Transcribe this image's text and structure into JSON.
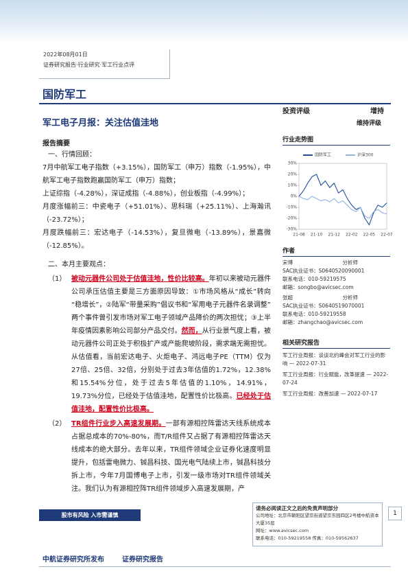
{
  "header": {
    "date": "2022年08月01日",
    "category": "证券研究报告·行业研究·军工行业点评",
    "sector": "国防军工"
  },
  "report": {
    "title": "军工电子月报：关注估值洼地",
    "rating_label": "投资评级",
    "rating": "增持",
    "rating_change": "维持评级"
  },
  "summary": {
    "heading": "报告摘要",
    "review": {
      "heading": "一、行情回顾：",
      "paragraphs": [
        "7月中航军工电子指数（+3.15%），国防军工（申万）指数（-1.95%），中航军工电子指数跑赢国防军工（申万）指数；",
        "上证综指（-4.28%），深证成指（-4.88%），创业板指（-4.99%）；",
        "月度涨幅前三：中瓷电子（+51.01%）、思科瑞（+25.11%）、上海瀚讯（-23.72%）；",
        "月度跌幅前三：宏达电子（-14.53%），复旦微电（-13.89%），景嘉微（-12.85%）。"
      ]
    },
    "views": {
      "heading": "二、本月主要观点：",
      "points": [
        {
          "number": "（1）",
          "parts": [
            {
              "text": "被动元器件公司处于估值洼地，性价比较高。",
              "emphasis": true
            },
            {
              "text": "年初以来被动元器件公司承压估值主要是三方面原因导致：①市场风格从“成长”转向“稳增长”，②陆军“带量采购”倡议书和“军用电子元器件名录调整”两个事件曾引发市场对军工电子领域产品降价的两次担忧；③上半年疫情因素影响公司部分产品交付。",
              "emphasis": false
            },
            {
              "text": "然而，",
              "emphasis": true
            },
            {
              "text": "从行业景气度上看，被动元器件公司正处于积极扩产或产能爬坡阶段，需求端无需担忧。从估值看，当前宏达电子、火炬电子、鸿远电子PE（TTM）仅为27倍、25倍、32倍，分别处于过去3年估值的1.72%，12.38%和15.54%分位，处于过去5年估值的1.10%，14.91%，19.73%分位，已经处于估值洼地，配置性价比极高。",
              "emphasis": false
            },
            {
              "text": "已经处于估值洼地，配置性价比极高。",
              "emphasis": true
            }
          ]
        },
        {
          "number": "（2）",
          "parts": [
            {
              "text": "TR组件行业步入高速发展期。",
              "emphasis": true
            },
            {
              "text": "一部有源相控阵雷达天线系统成本占据总成本的70%-80%，而T/R组件又占据了有源相控阵雷达天线成本的绝大部分。去年以来，TR组件领域企业证券化速度明显提升，包括雷电微力、铖昌科技、国光电气陆续上市，铖昌科技分拆上市，今年7月国博电子上市，引发一级市场对TR组件领域关注。我们认为有源相控阵TR组件领域步入高速发展期，产",
              "emphasis": false
            }
          ]
        }
      ]
    }
  },
  "sidebar": {
    "trend_chart": {
      "type": "line",
      "title": "行业走势图",
      "categories": [
        "21-08",
        null,
        null,
        null,
        "21-10",
        null,
        null,
        null,
        "21-12",
        null,
        null,
        null,
        "22-02",
        null,
        null,
        null,
        "22-05",
        null,
        null,
        null,
        "22-07"
      ],
      "series": [
        {
          "name": "国防军工",
          "color": "#1f4e9c",
          "values": [
            0,
            5,
            12,
            18,
            20,
            10,
            14,
            8,
            12,
            3,
            6,
            -2,
            -8,
            -12,
            -10,
            -20,
            -26,
            -15,
            -8,
            -10,
            -6
          ]
        },
        {
          "name": "沪深300",
          "color": "#8fb4e3",
          "values": [
            0,
            -2,
            -3,
            0,
            -2,
            -4,
            -3,
            -5,
            -2,
            -6,
            -4,
            -8,
            -12,
            -14,
            -10,
            -18,
            -20,
            -14,
            -12,
            -15,
            -16
          ]
        }
      ],
      "ylim": [
        -30,
        30
      ],
      "yticks": [
        {
          "value": 30,
          "label": "30%"
        },
        {
          "value": 20,
          "label": "20%"
        },
        {
          "value": 10,
          "label": "10%"
        },
        {
          "value": 0,
          "label": "0%"
        },
        {
          "value": -10,
          "label": "-10%"
        },
        {
          "value": -20,
          "label": "-20%"
        },
        {
          "value": -30,
          "label": "-30%"
        }
      ]
    },
    "authors": {
      "heading": "作者",
      "people": [
        {
          "name": "宋博",
          "role": "分析师",
          "cert": "SAC执业证书：S0640520090001",
          "phone": "联系电话：010-59219575",
          "email": "邮箱：songbo@avicsec.com"
        },
        {
          "name": "张超",
          "role": "分析师",
          "cert": "SAC执业证书：S0640519070001",
          "phone": "联系电话：010-59219558",
          "email": "邮箱：zhangchao@avicsec.com"
        }
      ]
    },
    "related": {
      "heading": "相关研究报告",
      "items": [
        "军工行业周报：谈谈北约峰会对军工行业的影响 — 2022-07-31",
        "军工行业周报：行业赋能，改革提速 — 2022-07-24",
        "军工行业周报：改善加速 — 2022-07-17"
      ]
    }
  },
  "footer": {
    "risk_notice": "股市有风险 入市需谨慎",
    "disclaimer": "请务必阅读正文之后的免责声明部分",
    "address": "公司地址：北京市朝阳区望京街道望京东园四区2号楼中航资本大厦35层",
    "website": "网址：www.avicsec.com",
    "contact": "联系电话：010-59219558 传真：010-59562637",
    "page": "1",
    "publisher": "中航证券研究所发布",
    "doc_type": "证券研究报告"
  }
}
